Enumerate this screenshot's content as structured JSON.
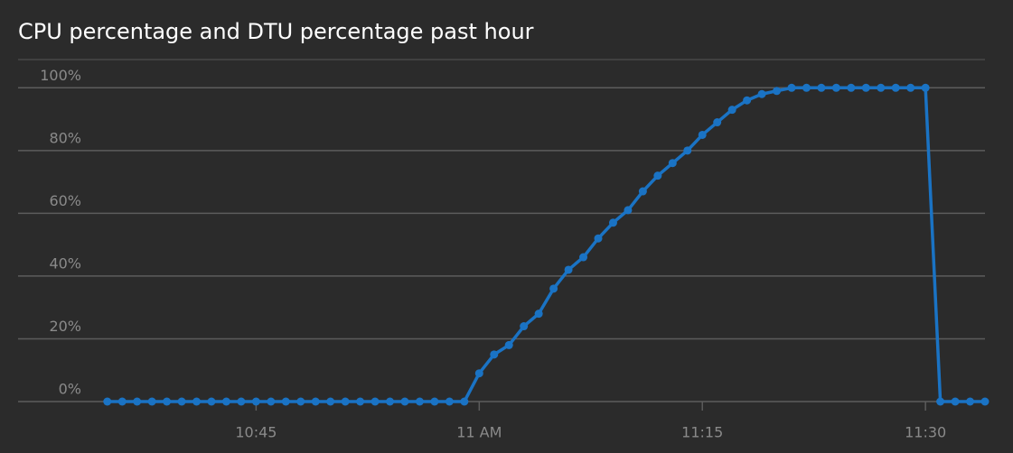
{
  "chart_data": {
    "type": "line",
    "title": "CPU percentage and DTU percentage past hour",
    "x": [
      "10:35",
      "10:36",
      "10:37",
      "10:38",
      "10:39",
      "10:40",
      "10:41",
      "10:42",
      "10:43",
      "10:44",
      "10:45",
      "10:46",
      "10:47",
      "10:48",
      "10:49",
      "10:50",
      "10:51",
      "10:52",
      "10:53",
      "10:54",
      "10:55",
      "10:56",
      "10:57",
      "10:58",
      "10:59",
      "11:00",
      "11:01",
      "11:02",
      "11:03",
      "11:04",
      "11:05",
      "11:06",
      "11:07",
      "11:08",
      "11:09",
      "11:10",
      "11:11",
      "11:12",
      "11:13",
      "11:14",
      "11:15",
      "11:16",
      "11:17",
      "11:18",
      "11:19",
      "11:20",
      "11:21",
      "11:22",
      "11:23",
      "11:24",
      "11:25",
      "11:26",
      "11:27",
      "11:28",
      "11:29",
      "11:30",
      "11:31",
      "11:32",
      "11:33",
      "11:34"
    ],
    "values": [
      0,
      0,
      0,
      0,
      0,
      0,
      0,
      0,
      0,
      0,
      0,
      0,
      0,
      0,
      0,
      0,
      0,
      0,
      0,
      0,
      0,
      0,
      0,
      0,
      0,
      9,
      15,
      18,
      24,
      28,
      36,
      42,
      46,
      52,
      57,
      61,
      67,
      72,
      76,
      80,
      85,
      89,
      93,
      96,
      98,
      99,
      100,
      100,
      100,
      100,
      100,
      100,
      100,
      100,
      100,
      100,
      0,
      0,
      0,
      0
    ],
    "color": "#1a73c4",
    "xlim": [
      "10:29",
      "11:34"
    ],
    "xticks": [
      {
        "value": "10:45",
        "label": "10:45"
      },
      {
        "value": "11:00",
        "label": "11 AM"
      },
      {
        "value": "11:15",
        "label": "11:15"
      },
      {
        "value": "11:30",
        "label": "11:30"
      }
    ],
    "ylim": [
      0,
      109
    ],
    "yticks": [
      {
        "value": 0,
        "label": "0%"
      },
      {
        "value": 20,
        "label": "20%"
      },
      {
        "value": 40,
        "label": "40%"
      },
      {
        "value": 60,
        "label": "60%"
      },
      {
        "value": 80,
        "label": "80%"
      },
      {
        "value": 100,
        "label": "100%"
      }
    ],
    "grid": true
  }
}
